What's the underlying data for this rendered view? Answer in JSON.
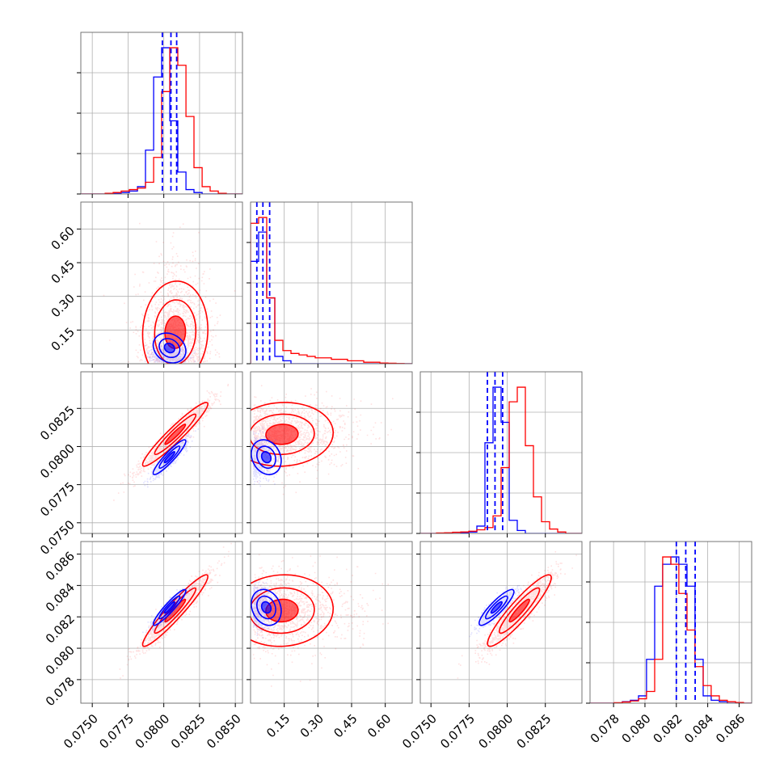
{
  "colors": {
    "a": "#0000ff",
    "b": "#ff0000",
    "grid": "#b0b0b0",
    "axis": "#000000"
  },
  "chart_data": {
    "type": "corner",
    "title": "",
    "grid": true,
    "parameters": [
      {
        "range": [
          0.0742,
          0.0855
        ],
        "ticks": [
          0.075,
          0.0775,
          0.08,
          0.0825,
          0.085
        ],
        "ticklabels": [
          "0.0750",
          "0.0775",
          "0.0800",
          "0.0825",
          "0.0850"
        ]
      },
      {
        "range": [
          0.0,
          0.72
        ],
        "ticks": [
          0.15,
          0.3,
          0.45,
          0.6
        ],
        "ticklabels": [
          "0.15",
          "0.30",
          "0.45",
          "0.60"
        ]
      },
      {
        "range": [
          0.0743,
          0.0849
        ],
        "ticks": [
          0.075,
          0.0775,
          0.08,
          0.0825
        ],
        "ticklabels": [
          "0.0750",
          "0.0775",
          "0.0800",
          "0.0825"
        ]
      },
      {
        "range": [
          0.0765,
          0.0868
        ],
        "ticks": [
          0.078,
          0.08,
          0.082,
          0.084,
          0.086
        ],
        "ticklabels": [
          "0.078",
          "0.080",
          "0.082",
          "0.084",
          "0.086"
        ]
      }
    ],
    "series": [
      {
        "color": "#0000ff",
        "mean": [
          0.0804,
          0.07,
          0.0793,
          0.0826
        ],
        "std": [
          0.0006,
          0.035,
          0.0006,
          0.0006
        ],
        "corr": [
          [
            1,
            -0.2,
            0.92,
            0.93
          ],
          [
            -0.2,
            1,
            -0.2,
            -0.2
          ],
          [
            0.92,
            -0.2,
            1,
            0.88
          ],
          [
            0.93,
            -0.2,
            0.88,
            1
          ]
        ],
        "quantiles": [
          [
            0.0799,
            0.0805,
            0.0809
          ],
          [
            0.028,
            0.055,
            0.085
          ],
          [
            0.0787,
            0.0792,
            0.0797
          ],
          [
            0.082,
            0.0826,
            0.0832
          ]
        ],
        "hist": [
          {
            "edges": [
              0.0742,
              0.07476,
              0.07533,
              0.0759,
              0.07646,
              0.07702,
              0.07759,
              0.07816,
              0.07872,
              0.07929,
              0.07985,
              0.08042,
              0.08098,
              0.08155,
              0.08211,
              0.08268,
              0.08324,
              0.08381,
              0.08437,
              0.08494,
              0.0855
            ],
            "counts": [
              0,
              0,
              0,
              0,
              0.005,
              0.01,
              0.02,
              0.05,
              0.3,
              0.8,
              1.0,
              0.5,
              0.15,
              0.03,
              0.01,
              0,
              0,
              0,
              0,
              0
            ]
          },
          {
            "edges": [
              0,
              0.036,
              0.072,
              0.108,
              0.144,
              0.18,
              0.216,
              0.252,
              0.288,
              0.324,
              0.36,
              0.396,
              0.432,
              0.468,
              0.504,
              0.54,
              0.576,
              0.612,
              0.648,
              0.684,
              0.72
            ],
            "counts": [
              0.7,
              0.9,
              0.45,
              0.05,
              0.02,
              0,
              0,
              0,
              0,
              0,
              0,
              0,
              0,
              0,
              0,
              0,
              0,
              0,
              0,
              0
            ]
          },
          {
            "edges": [
              0.0743,
              0.07483,
              0.07536,
              0.07589,
              0.07642,
              0.07695,
              0.07748,
              0.07801,
              0.07854,
              0.07907,
              0.0796,
              0.08013,
              0.08066,
              0.08119,
              0.08172,
              0.08225,
              0.08278,
              0.08331,
              0.08384,
              0.08437,
              0.0849
            ],
            "counts": [
              0,
              0,
              0,
              0,
              0,
              0.005,
              0.01,
              0.05,
              0.62,
              1.0,
              0.76,
              0.09,
              0.02,
              0,
              0,
              0,
              0,
              0,
              0,
              0
            ]
          },
          {
            "edges": [
              0.0765,
              0.07701,
              0.07753,
              0.07804,
              0.07856,
              0.07907,
              0.07959,
              0.0801,
              0.08062,
              0.08113,
              0.08165,
              0.08216,
              0.08268,
              0.08319,
              0.08371,
              0.08422,
              0.08474,
              0.08525,
              0.08577,
              0.08628,
              0.0868
            ],
            "counts": [
              0,
              0,
              0,
              0,
              0.01,
              0.02,
              0.05,
              0.3,
              0.8,
              0.95,
              1.0,
              0.95,
              0.8,
              0.3,
              0.05,
              0.02,
              0.01,
              0,
              0,
              0
            ]
          }
        ]
      },
      {
        "color": "#ff0000",
        "mean": [
          0.0808,
          0.14,
          0.0808,
          0.0824
        ],
        "std": [
          0.0012,
          0.12,
          0.0011,
          0.0012
        ],
        "corr": [
          [
            1,
            0.05,
            0.95,
            0.95
          ],
          [
            0.05,
            1,
            0.05,
            0.05
          ],
          [
            0.95,
            0.05,
            1,
            0.92
          ],
          [
            0.95,
            0.05,
            0.92,
            1
          ]
        ],
        "quantiles": [
          [
            0.0801,
            0.0807,
            0.0814
          ],
          [
            0.04,
            0.09,
            0.2
          ],
          [
            0.0801,
            0.0808,
            0.0815
          ],
          [
            0.0818,
            0.0824,
            0.0831
          ]
        ],
        "hist": [
          {
            "edges": [
              0.0742,
              0.07476,
              0.07533,
              0.0759,
              0.07646,
              0.07702,
              0.07759,
              0.07816,
              0.07872,
              0.07929,
              0.07985,
              0.08042,
              0.08098,
              0.08155,
              0.08211,
              0.08268,
              0.08324,
              0.08381,
              0.08437,
              0.08494,
              0.0855
            ],
            "counts": [
              0,
              0,
              0,
              0.005,
              0.01,
              0.02,
              0.03,
              0.04,
              0.08,
              0.25,
              0.7,
              1.0,
              0.88,
              0.53,
              0.18,
              0.05,
              0.02,
              0.005,
              0,
              0
            ]
          },
          {
            "edges": [
              0,
              0.036,
              0.072,
              0.108,
              0.144,
              0.18,
              0.216,
              0.252,
              0.288,
              0.324,
              0.36,
              0.396,
              0.432,
              0.468,
              0.504,
              0.54,
              0.576,
              0.612,
              0.648,
              0.684,
              0.72
            ],
            "counts": [
              0.96,
              1.0,
              0.45,
              0.16,
              0.09,
              0.07,
              0.06,
              0.05,
              0.04,
              0.04,
              0.03,
              0.03,
              0.02,
              0.02,
              0.01,
              0.01,
              0.005,
              0.003,
              0.001,
              0
            ]
          },
          {
            "edges": [
              0.0743,
              0.07483,
              0.07536,
              0.07589,
              0.07642,
              0.07695,
              0.07748,
              0.07801,
              0.07854,
              0.07907,
              0.0796,
              0.08013,
              0.08066,
              0.08119,
              0.08172,
              0.08225,
              0.08278,
              0.08331,
              0.08384,
              0.08437,
              0.0849
            ],
            "counts": [
              0,
              0,
              0.003,
              0.005,
              0.008,
              0.01,
              0.015,
              0.025,
              0.04,
              0.12,
              0.45,
              0.9,
              1.0,
              0.6,
              0.25,
              0.08,
              0.03,
              0.01,
              0,
              0
            ]
          },
          {
            "edges": [
              0.0765,
              0.07701,
              0.07753,
              0.07804,
              0.07856,
              0.07907,
              0.07959,
              0.0801,
              0.08062,
              0.08113,
              0.08165,
              0.08216,
              0.08268,
              0.08319,
              0.08371,
              0.08422,
              0.08474,
              0.08525,
              0.08577,
              0.08628,
              0.0868
            ],
            "counts": [
              0,
              0,
              0,
              0.003,
              0.008,
              0.015,
              0.03,
              0.08,
              0.3,
              1.0,
              0.95,
              0.75,
              0.5,
              0.25,
              0.12,
              0.05,
              0.02,
              0.01,
              0.005,
              0
            ]
          }
        ]
      }
    ]
  }
}
